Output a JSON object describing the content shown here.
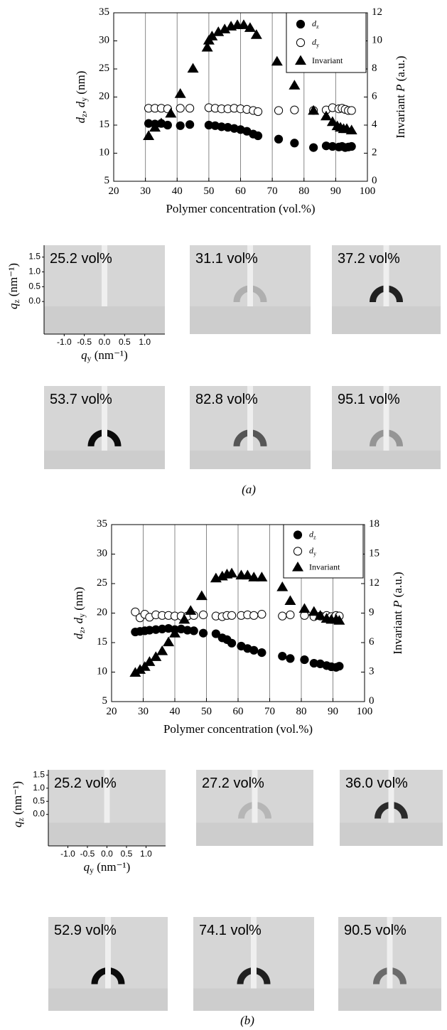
{
  "chart_data": [
    {
      "type": "scatter",
      "xlabel": "Polymer concentration (vol.%)",
      "ylabel": "dz, dy (nm)",
      "y2label": "Invariant P (a.u.)",
      "xlim": [
        20,
        100
      ],
      "xticks": [
        20,
        30,
        40,
        50,
        60,
        70,
        80,
        90,
        100
      ],
      "ylim": [
        5,
        35
      ],
      "yticks": [
        5,
        10,
        15,
        20,
        25,
        30,
        35
      ],
      "y2lim": [
        0,
        12
      ],
      "y2ticks": [
        0,
        2,
        4,
        6,
        8,
        10,
        12
      ],
      "grid": "x",
      "legend": "upper right",
      "series": [
        {
          "name": "dz",
          "marker": "circle",
          "fill": "filled",
          "color": "#000000",
          "x": [
            31,
            33,
            35,
            37,
            41,
            44,
            50,
            52,
            54,
            56,
            58,
            60,
            62,
            64,
            65.5,
            72,
            77,
            83,
            87,
            89,
            91,
            92,
            93,
            94,
            95
          ],
          "values": [
            15.3,
            15.2,
            15.3,
            15.0,
            14.9,
            15.1,
            15.0,
            14.9,
            14.7,
            14.6,
            14.4,
            14.2,
            13.9,
            13.4,
            13.1,
            12.5,
            11.8,
            11.0,
            11.3,
            11.2,
            11.1,
            11.2,
            11.0,
            11.1,
            11.2
          ]
        },
        {
          "name": "dy",
          "marker": "circle",
          "fill": "open",
          "color": "#000000",
          "x": [
            31,
            33,
            35,
            37,
            41,
            44,
            50,
            52,
            54,
            56,
            58,
            60,
            62,
            64,
            65.5,
            72,
            77,
            83,
            87,
            89,
            91,
            92,
            93,
            94,
            95
          ],
          "values": [
            18.0,
            18.0,
            18.0,
            17.9,
            18.0,
            18.0,
            18.1,
            18.0,
            17.9,
            17.9,
            18.0,
            17.9,
            17.8,
            17.6,
            17.4,
            17.6,
            17.7,
            17.6,
            17.7,
            18.1,
            17.9,
            18.0,
            17.8,
            17.6,
            17.6
          ]
        },
        {
          "name": "Invariant",
          "marker": "triangle",
          "fill": "filled",
          "color": "#000000",
          "axis": "y2",
          "x": [
            31,
            33,
            35,
            38,
            41,
            45,
            49.5,
            50,
            51,
            53,
            55,
            57,
            59,
            61,
            63,
            65,
            71.5,
            77,
            83,
            87,
            89,
            90.5,
            91.5,
            92.5,
            93.5,
            95
          ],
          "values": [
            3.2,
            3.8,
            4.1,
            4.8,
            6.2,
            8.0,
            9.5,
            10.0,
            10.3,
            10.6,
            10.8,
            11.0,
            11.1,
            11.1,
            10.9,
            10.4,
            8.5,
            6.8,
            5.0,
            4.6,
            4.2,
            3.9,
            3.8,
            3.7,
            3.7,
            3.6
          ]
        }
      ]
    },
    {
      "type": "scatter",
      "xlabel": "Polymer concentration (vol.%)",
      "ylabel": "dz, dy (nm)",
      "y2label": "Invariant P (a.u.)",
      "xlim": [
        20,
        100
      ],
      "xticks": [
        20,
        30,
        40,
        50,
        60,
        70,
        80,
        90,
        100
      ],
      "ylim": [
        5,
        35
      ],
      "yticks": [
        5,
        10,
        15,
        20,
        25,
        30,
        35
      ],
      "y2lim": [
        0,
        18
      ],
      "y2ticks": [
        0,
        3,
        6,
        9,
        12,
        15,
        18
      ],
      "grid": "x",
      "legend": "upper right",
      "series": [
        {
          "name": "dz",
          "marker": "circle",
          "fill": "filled",
          "color": "#000000",
          "x": [
            27.5,
            29,
            30.5,
            32,
            34,
            36,
            38,
            40,
            42,
            44,
            46,
            49,
            53,
            55,
            56.5,
            58,
            61,
            63,
            65,
            67.5,
            74,
            76.5,
            81,
            84,
            86,
            88,
            89.5,
            91,
            92
          ],
          "values": [
            16.8,
            16.9,
            17.0,
            17.1,
            17.2,
            17.3,
            17.4,
            17.2,
            17.3,
            17.1,
            17.0,
            16.6,
            16.5,
            15.8,
            15.5,
            14.9,
            14.4,
            14.0,
            13.7,
            13.3,
            12.7,
            12.3,
            12.1,
            11.5,
            11.4,
            11.1,
            10.9,
            10.8,
            11.0
          ]
        },
        {
          "name": "dy",
          "marker": "circle",
          "fill": "open",
          "color": "#000000",
          "x": [
            27.5,
            29,
            30.5,
            32,
            34,
            36,
            38,
            40,
            42,
            44,
            46,
            49,
            53,
            55,
            56.5,
            58,
            61,
            63,
            65,
            67.5,
            74,
            76.5,
            81,
            84,
            86,
            88,
            89.5,
            91,
            92
          ],
          "values": [
            20.2,
            19.2,
            19.8,
            19.3,
            19.7,
            19.6,
            19.6,
            19.5,
            19.5,
            19.5,
            19.6,
            19.7,
            19.5,
            19.4,
            19.6,
            19.6,
            19.6,
            19.7,
            19.6,
            19.8,
            19.5,
            19.7,
            19.6,
            19.4,
            19.5,
            19.6,
            19.4,
            19.6,
            19.5
          ]
        },
        {
          "name": "Invariant",
          "marker": "triangle",
          "fill": "filled",
          "color": "#000000",
          "axis": "y2",
          "x": [
            27.5,
            29,
            30.5,
            32,
            34,
            36,
            38,
            40,
            43,
            45,
            48.5,
            53,
            55,
            56.5,
            58,
            61,
            63,
            65,
            67.5,
            74,
            76.5,
            81,
            84,
            86,
            88,
            89.5,
            91,
            92
          ],
          "values": [
            2.9,
            3.2,
            3.5,
            4.0,
            4.5,
            5.1,
            6.0,
            6.9,
            8.3,
            9.2,
            10.7,
            12.5,
            12.7,
            12.9,
            13.0,
            12.8,
            12.8,
            12.6,
            12.6,
            11.6,
            10.2,
            9.4,
            9.1,
            8.7,
            8.4,
            8.3,
            8.3,
            8.2
          ]
        }
      ]
    }
  ],
  "patterns": [
    {
      "caption": "(a)",
      "ylabel": "qz (nm⁻¹)",
      "xlabel": "qy (nm⁻¹)",
      "ylim": [
        -1.1,
        1.9
      ],
      "yticks": [
        {
          "value": 0,
          "label": "0.0"
        },
        0.5,
        {
          "value": 1,
          "label": "1.0"
        },
        1.5
      ],
      "xlim": [
        -1.5,
        1.5
      ],
      "xticks": [
        {
          "value": -1,
          "label": "-1.0"
        },
        -0.5,
        {
          "value": 0,
          "label": "0.0"
        },
        0.5,
        {
          "value": 1,
          "label": "1.0"
        }
      ],
      "labels": [
        "25.2 vol%",
        "31.1 vol%",
        "37.2 vol%",
        "53.7 vol%",
        "82.8 vol%",
        "95.1 vol%"
      ]
    },
    {
      "caption": "(b)",
      "ylabel": "qz (nm⁻¹)",
      "xlabel": "qy (nm⁻¹)",
      "ylim": [
        -1.2,
        1.7
      ],
      "yticks": [
        {
          "value": 0,
          "label": "0.0"
        },
        0.5,
        {
          "value": 1,
          "label": "1.0"
        },
        1.5
      ],
      "xlim": [
        -1.5,
        1.5
      ],
      "xticks": [
        {
          "value": -1,
          "label": "-1.0"
        },
        -0.5,
        {
          "value": 0,
          "label": "0.0"
        },
        0.5,
        {
          "value": 1,
          "label": "1.0"
        }
      ],
      "labels": [
        "25.2 vol%",
        "27.2 vol%",
        "36.0 vol%",
        "52.9 vol%",
        "74.1 vol%",
        "90.5 vol%"
      ]
    }
  ]
}
